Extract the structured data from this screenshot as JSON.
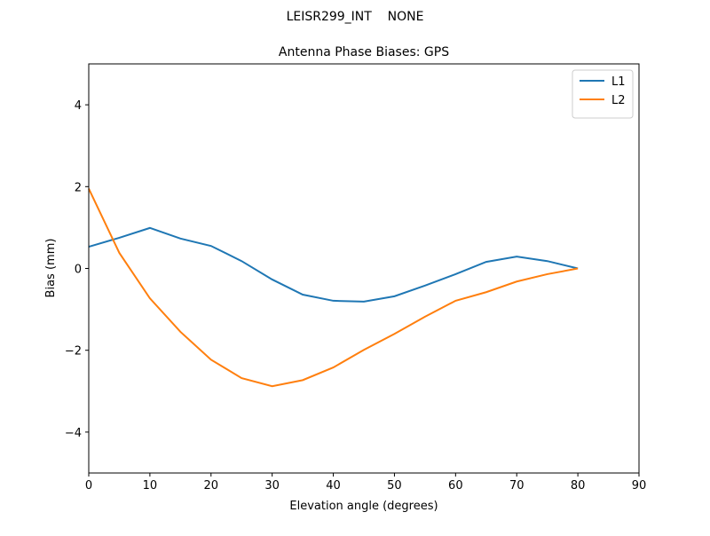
{
  "chart_data": {
    "type": "line",
    "suptitle": "LEISR299_INT    NONE",
    "title": "Antenna Phase Biases: GPS",
    "xlabel": "Elevation angle (degrees)",
    "ylabel": "Bias (mm)",
    "x": [
      0,
      5,
      10,
      15,
      20,
      25,
      30,
      35,
      40,
      45,
      50,
      55,
      60,
      65,
      70,
      75,
      80
    ],
    "series": [
      {
        "name": "L1",
        "color": "#1f77b4",
        "values": [
          0.53,
          0.75,
          0.99,
          0.73,
          0.55,
          0.18,
          -0.27,
          -0.64,
          -0.79,
          -0.81,
          -0.68,
          -0.42,
          -0.14,
          0.16,
          0.29,
          0.18,
          0.0
        ]
      },
      {
        "name": "L2",
        "color": "#ff7f0e",
        "values": [
          1.95,
          0.38,
          -0.73,
          -1.55,
          -2.23,
          -2.68,
          -2.88,
          -2.73,
          -2.42,
          -1.99,
          -1.6,
          -1.18,
          -0.79,
          -0.58,
          -0.32,
          -0.14,
          0.0
        ]
      }
    ],
    "xlim": [
      0,
      90
    ],
    "xticks": [
      0,
      10,
      20,
      30,
      40,
      50,
      60,
      70,
      80,
      90
    ],
    "ylim": [
      -5,
      5
    ],
    "yticks": [
      {
        "value": -4,
        "label": "−4"
      },
      {
        "value": -2,
        "label": "−2"
      },
      0,
      2,
      4
    ],
    "grid": false,
    "legend": "upper right"
  }
}
